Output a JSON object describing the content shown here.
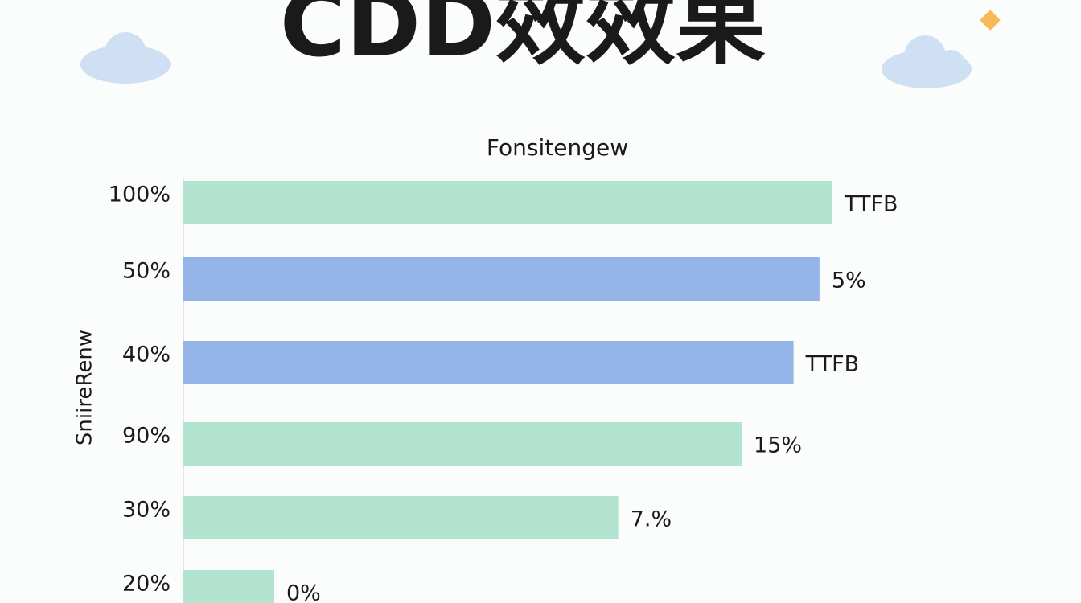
{
  "chart_data": {
    "type": "hbar",
    "title": "CDD效效果",
    "subtitle": "Fonsitengew",
    "y_label": "SniireRenw",
    "categories": [
      "100%",
      "50%",
      "40%",
      "90%",
      "30%",
      "20%"
    ],
    "values": [
      100,
      98,
      94,
      86,
      67,
      14
    ],
    "bar_labels": [
      "TTFB",
      "5%",
      "TTFB",
      "15%",
      "7.%",
      "0%"
    ],
    "colors": [
      "#b2e4cf",
      "#95b5e9",
      "#95b5e9",
      "#b2e4cf",
      "#b2e4cf",
      "#b2e4cf"
    ],
    "xlim": [
      0,
      100
    ]
  }
}
